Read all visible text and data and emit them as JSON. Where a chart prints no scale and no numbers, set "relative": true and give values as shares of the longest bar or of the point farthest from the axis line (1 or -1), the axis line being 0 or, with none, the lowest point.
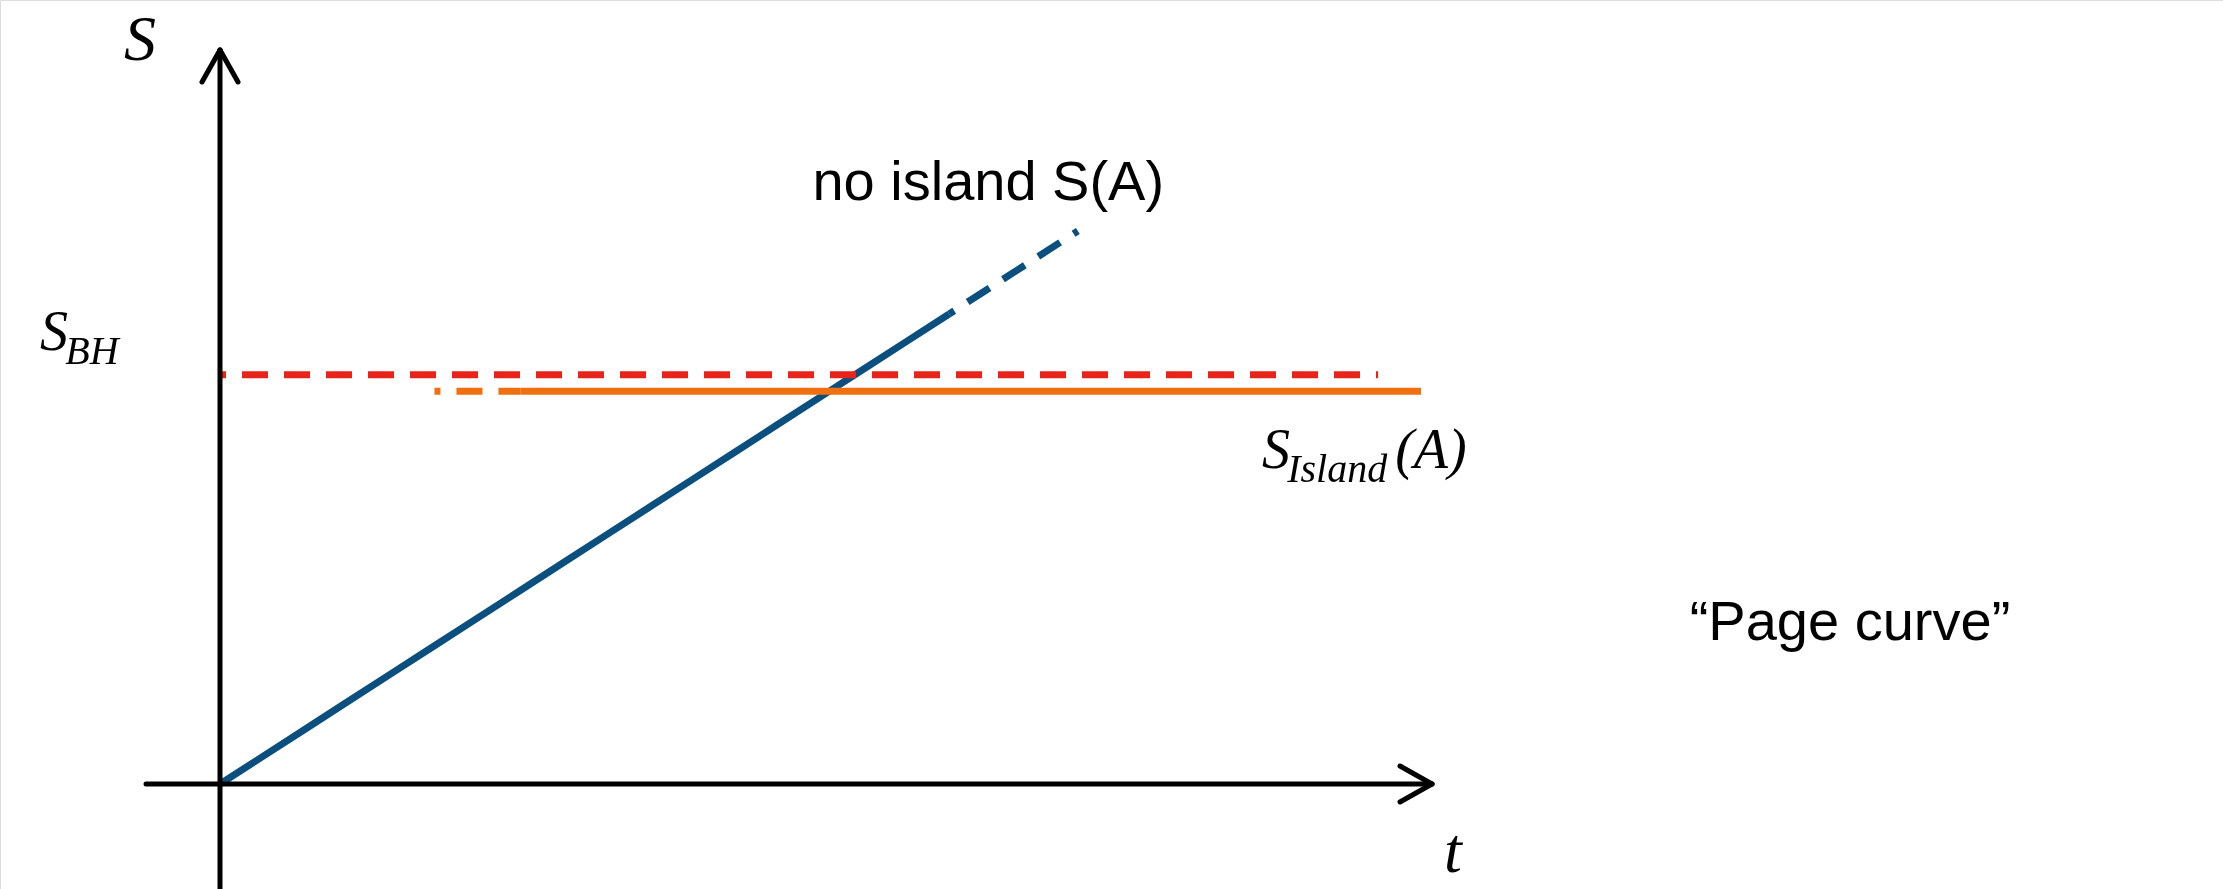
{
  "chart_data": {
    "type": "line",
    "relative": true,
    "xlabel": "t",
    "ylabel": "S",
    "categories": [
      null,
      null,
      null,
      null,
      null,
      null,
      null,
      null,
      null,
      null,
      null,
      null,
      null,
      null,
      null,
      null,
      null,
      null,
      null,
      null,
      null,
      null,
      null,
      null,
      null,
      null,
      null,
      null,
      null
    ],
    "series": [
      {
        "name": "no island S(A)",
        "color": "#0b4f7f",
        "line_style": "solid",
        "values": [
          0,
          0.05,
          0.1,
          0.15,
          0.2,
          0.25,
          0.3,
          0.35,
          0.4,
          0.45,
          0.5,
          0.55,
          0.6,
          0.65,
          0.7,
          0.75,
          0.8,
          0.85,
          null,
          null,
          null,
          null,
          null,
          null,
          null,
          null,
          null,
          null,
          null
        ]
      },
      {
        "color": "#0b4f7f",
        "line_style": "dashed",
        "values": [
          null,
          null,
          null,
          null,
          null,
          null,
          null,
          null,
          null,
          null,
          null,
          null,
          null,
          null,
          null,
          null,
          null,
          0.85,
          0.9,
          0.95,
          1,
          null,
          null,
          null,
          null,
          null,
          null,
          null,
          null
        ]
      },
      {
        "color": "#f07010",
        "line_style": "dashed",
        "values": [
          null,
          null,
          null,
          null,
          null,
          0.71,
          0.71,
          0.71,
          null,
          null,
          null,
          null,
          null,
          null,
          null,
          null,
          null,
          null,
          null,
          null,
          null,
          null,
          null,
          null,
          null,
          null,
          null,
          null,
          null
        ]
      },
      {
        "name": "S$_{Island}$(A)",
        "color": "#f07010",
        "line_style": "solid",
        "values": [
          null,
          null,
          null,
          null,
          null,
          null,
          null,
          0.71,
          0.71,
          0.71,
          0.71,
          0.71,
          0.71,
          0.71,
          0.71,
          0.71,
          0.71,
          0.71,
          0.71,
          0.71,
          0.71,
          0.71,
          0.71,
          0.71,
          0.71,
          0.71,
          0.71,
          0.71,
          0.71
        ]
      },
      {
        "name": "S$_{BH}$",
        "color": "#e8231a",
        "line_style": "dashed",
        "values": [
          0.74,
          0.74,
          0.74,
          0.74,
          0.74,
          0.74,
          0.74,
          0.74,
          0.74,
          0.74,
          0.74,
          0.74,
          0.74,
          0.74,
          0.74,
          0.74,
          0.74,
          0.74,
          0.74,
          0.74,
          0.74,
          0.74,
          0.74,
          0.74,
          0.74,
          0.74,
          0.74,
          0.74,
          null
        ]
      }
    ],
    "annotations": [
      "“Page curve”"
    ]
  }
}
